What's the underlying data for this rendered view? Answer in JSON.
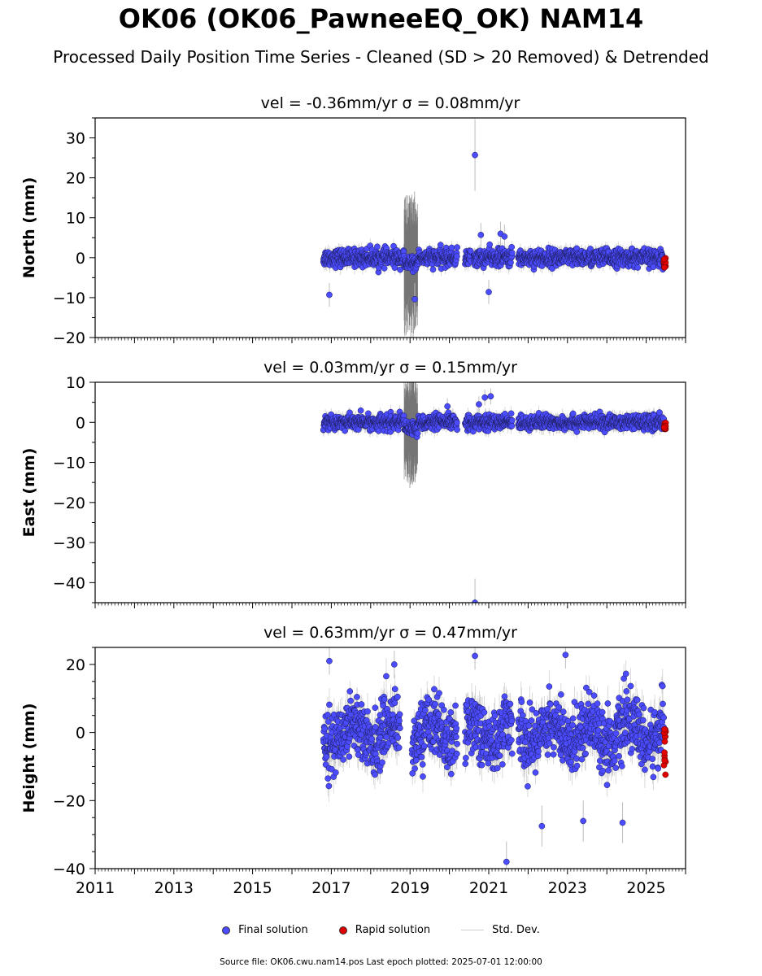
{
  "title": "OK06 (OK06_PawneeEQ_OK) NAM14",
  "subtitle": "Processed Daily Position Time Series - Cleaned (SD > 20 Removed) & Detrended",
  "legend": {
    "final": "Final solution",
    "rapid": "Rapid solution",
    "std": "Std. Dev."
  },
  "footer": "Source file: OK06.cwu.nam14.pos  Last epoch plotted: 2025-07-01 12:00:00",
  "colors": {
    "final": "#4b4bff",
    "rapid": "#e00000",
    "std": "#bdbdbd"
  },
  "chart_data": [
    {
      "type": "scatter",
      "component": "north",
      "title": "vel = -0.36mm/yr   σ = 0.08mm/yr",
      "ylabel": "North (mm)",
      "xlim": [
        2011,
        2026
      ],
      "ylim": [
        -20,
        35
      ],
      "yticks": [
        -20,
        -10,
        0,
        10,
        20,
        30
      ],
      "xticks": [],
      "data_range": [
        2016.8,
        2025.45
      ],
      "gaps": [
        [
          2020.2,
          2020.4
        ],
        [
          2020.55,
          2020.62
        ],
        [
          2021.6,
          2021.75
        ]
      ],
      "noise_sd": 1.3,
      "noisy_band": {
        "range": [
          2018.85,
          2019.2
        ],
        "sd_max": 18
      },
      "outliers": [
        {
          "x": 2020.65,
          "y": 25.7,
          "sd": 9
        },
        {
          "x": 2021.3,
          "y": 6.0,
          "sd": 3
        },
        {
          "x": 2021.4,
          "y": 5.3,
          "sd": 3
        },
        {
          "x": 2016.95,
          "y": -9.3,
          "sd": 3
        },
        {
          "x": 2019.12,
          "y": -10.4,
          "sd": 4
        },
        {
          "x": 2020.8,
          "y": 5.7,
          "sd": 3
        },
        {
          "x": 2021.0,
          "y": -8.6,
          "sd": 3
        }
      ],
      "rapid": {
        "range": [
          2025.45,
          2025.5
        ],
        "y_range": [
          -2.5,
          0.5
        ]
      }
    },
    {
      "type": "scatter",
      "component": "east",
      "title": "vel = 0.03mm/yr   σ = 0.15mm/yr",
      "ylabel": "East (mm)",
      "xlim": [
        2011,
        2026
      ],
      "ylim": [
        -45,
        10
      ],
      "yticks": [
        -40,
        -30,
        -20,
        -10,
        0,
        10
      ],
      "xticks": [],
      "data_range": [
        2016.8,
        2025.45
      ],
      "gaps": [
        [
          2020.2,
          2020.4
        ],
        [
          2021.6,
          2021.75
        ]
      ],
      "noise_sd": 1.1,
      "noisy_band": {
        "range": [
          2018.85,
          2019.2
        ],
        "sd_max": 14
      },
      "outliers": [
        {
          "x": 2020.65,
          "y": -45,
          "sd": 6
        },
        {
          "x": 2020.9,
          "y": 6.2,
          "sd": 2
        },
        {
          "x": 2021.05,
          "y": 6.5,
          "sd": 2
        },
        {
          "x": 2020.75,
          "y": 4.5,
          "sd": 2
        },
        {
          "x": 2019.95,
          "y": 4.0,
          "sd": 2
        }
      ],
      "rapid": {
        "range": [
          2025.45,
          2025.5
        ],
        "y_range": [
          -2,
          0
        ]
      }
    },
    {
      "type": "scatter",
      "component": "height",
      "title": "vel = 0.63mm/yr   σ = 0.47mm/yr",
      "ylabel": "Height (mm)",
      "xlim": [
        2011,
        2026
      ],
      "ylim": [
        -40,
        25
      ],
      "yticks": [
        -40,
        -20,
        0,
        20
      ],
      "xticks": [
        2011,
        2013,
        2015,
        2017,
        2019,
        2021,
        2023,
        2025
      ],
      "data_range": [
        2016.8,
        2025.45
      ],
      "gaps": [
        [
          2018.75,
          2019.05
        ],
        [
          2020.2,
          2020.4
        ],
        [
          2021.6,
          2021.75
        ]
      ],
      "noise_sd": 5.5,
      "noisy_band": null,
      "outliers": [
        {
          "x": 2021.45,
          "y": -38,
          "sd": 6
        },
        {
          "x": 2022.35,
          "y": -27.5,
          "sd": 6
        },
        {
          "x": 2024.4,
          "y": -26.5,
          "sd": 6
        },
        {
          "x": 2023.4,
          "y": -26,
          "sd": 6
        },
        {
          "x": 2016.95,
          "y": 21,
          "sd": 4
        },
        {
          "x": 2020.65,
          "y": 22.5,
          "sd": 4
        },
        {
          "x": 2022.95,
          "y": 22.8,
          "sd": 4
        },
        {
          "x": 2018.6,
          "y": 20,
          "sd": 4
        }
      ],
      "rapid": {
        "range": [
          2025.45,
          2025.5
        ],
        "y_range": [
          -13,
          3
        ]
      }
    }
  ]
}
